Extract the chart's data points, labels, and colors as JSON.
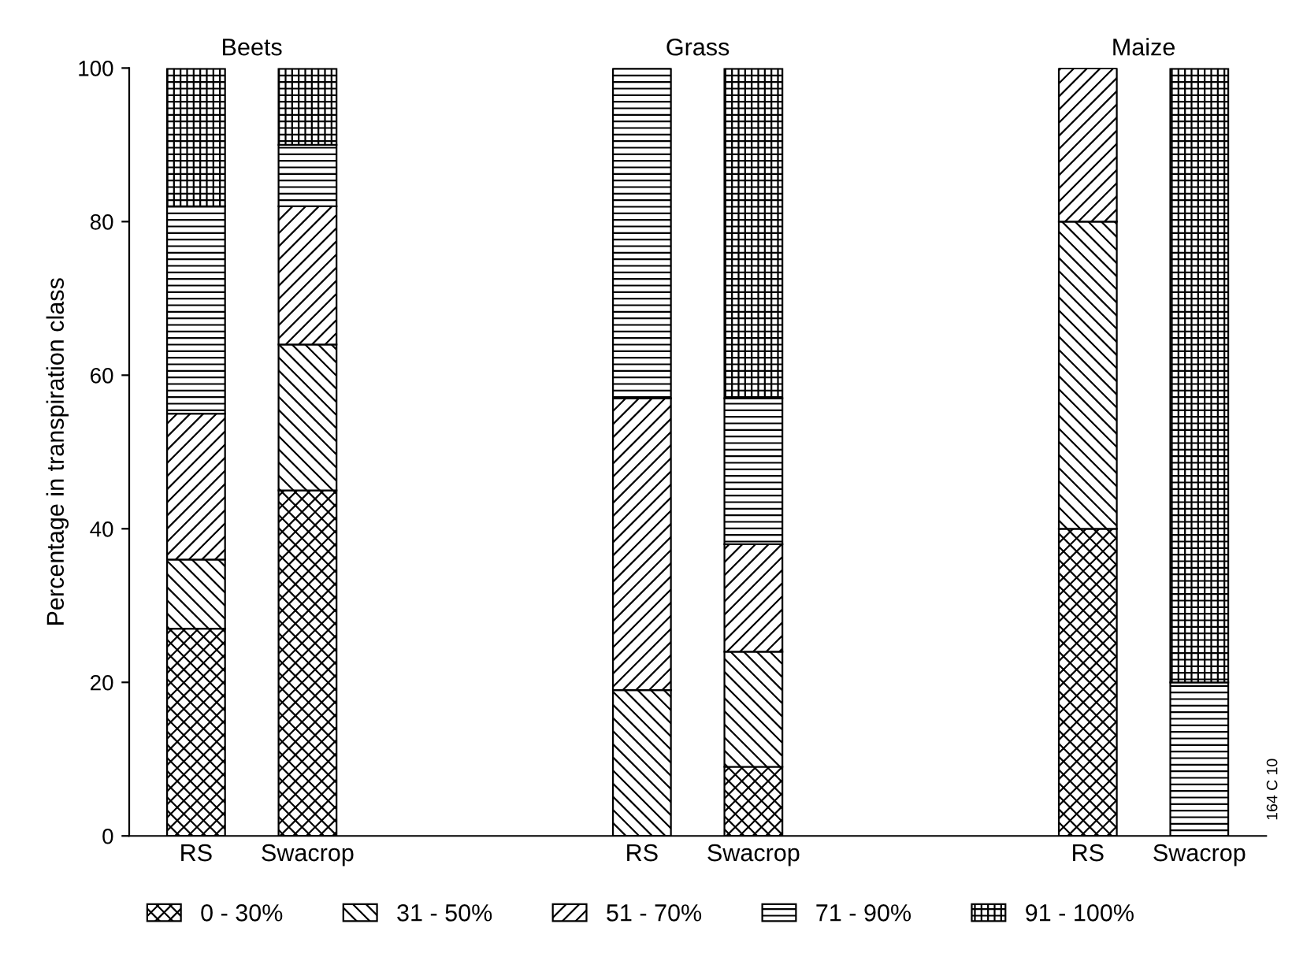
{
  "chart_data": {
    "type": "bar",
    "stacked": true,
    "ylabel": "Percentage in transpiration class",
    "categories": [
      "RS",
      "Swacrop",
      null,
      null,
      "RS",
      "Swacrop",
      null,
      null,
      "RS",
      "Swacrop"
    ],
    "series": [
      {
        "name": "0 - 30%",
        "color": "#000000",
        "values": [
          27,
          45,
          null,
          null,
          0,
          9,
          null,
          null,
          40,
          0
        ]
      },
      {
        "name": "31 - 50%",
        "color": "#000000",
        "values": [
          9,
          19,
          null,
          null,
          19,
          15,
          null,
          null,
          40,
          0
        ]
      },
      {
        "name": "51 - 70%",
        "color": "#000000",
        "values": [
          19,
          18,
          null,
          null,
          38,
          14,
          null,
          null,
          20,
          0
        ]
      },
      {
        "name": "71 - 90%",
        "color": "#000000",
        "values": [
          27,
          8,
          null,
          null,
          43,
          19,
          null,
          null,
          0,
          20
        ]
      },
      {
        "name": "91 - 100%",
        "color": "#000000",
        "values": [
          18,
          10,
          null,
          null,
          0,
          43,
          null,
          null,
          0,
          80
        ]
      }
    ],
    "ylim": [
      0,
      100
    ],
    "yticks": [
      0,
      20,
      40,
      60,
      80,
      100
    ],
    "grid": false,
    "legend": "bottom",
    "annotations": [
      "Beets",
      "Grass",
      "Maize",
      "164 C 10"
    ]
  }
}
